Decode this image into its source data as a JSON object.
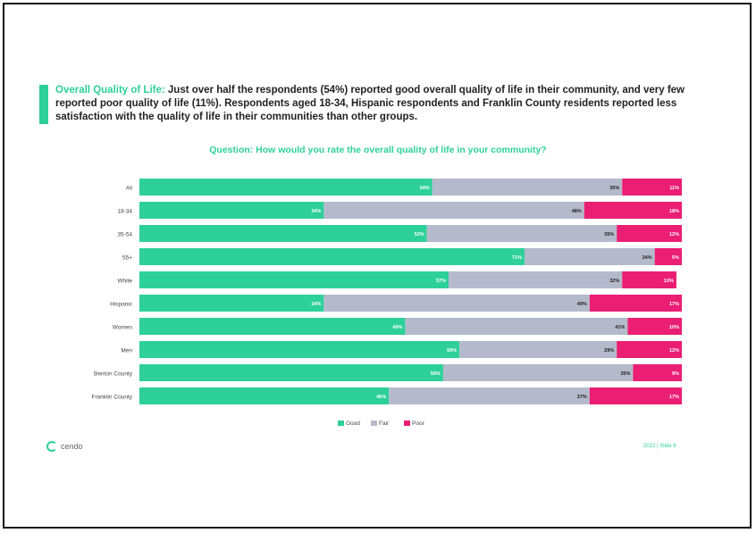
{
  "intro": {
    "lead": "Overall Quality of Life:",
    "text": " Just over half the respondents (54%) reported good overall quality of life in their community, and very few reported poor quality of life (11%). Respondents aged 18-34, Hispanic respondents and Franklin County residents reported less satisfaction with the quality of life in their communities than other groups."
  },
  "question": "Question: How would you rate the overall quality of life in your community?",
  "colors": {
    "good": "#2ed09a",
    "fair": "#b4bacb",
    "poor": "#ea1f74",
    "accent": "#2ed09a"
  },
  "chart_data": {
    "type": "bar",
    "orientation": "horizontal",
    "stacked": true,
    "stack_total": 100,
    "categories": [
      "All",
      "18-34",
      "35-54",
      "55+",
      "White",
      "Hispanic",
      "Women",
      "Men",
      "Benton County",
      "Franklin County"
    ],
    "series": [
      {
        "name": "Good",
        "values": [
          54,
          34,
          53,
          71,
          57,
          34,
          49,
          59,
          56,
          46
        ]
      },
      {
        "name": "Fair",
        "values": [
          35,
          48,
          35,
          24,
          32,
          49,
          41,
          29,
          35,
          37
        ]
      },
      {
        "name": "Poor",
        "values": [
          11,
          18,
          12,
          5,
          10,
          17,
          10,
          12,
          9,
          17
        ]
      }
    ],
    "legend_position": "bottom"
  },
  "footer": {
    "logo_text": "cendo",
    "page": "2022 | Slide 6"
  }
}
